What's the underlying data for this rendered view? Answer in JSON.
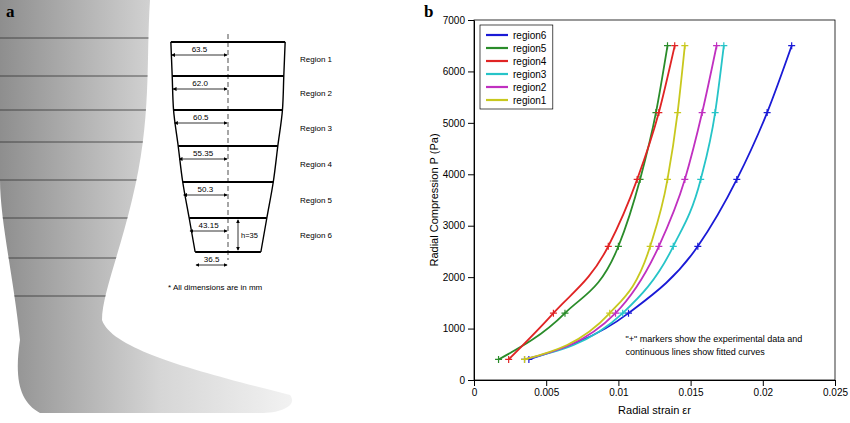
{
  "diagram": {
    "panel_label": "a",
    "widths": [
      "63.5",
      "62.0",
      "60.5",
      "55.35",
      "50.3",
      "43.15",
      "36.5"
    ],
    "regions": [
      "Region 1",
      "Region 2",
      "Region 3",
      "Region 4",
      "Region 5",
      "Region 6"
    ],
    "height_label": "h=35",
    "note": "* All dimensions are in mm"
  },
  "chart_data": {
    "panel_label": "b",
    "type": "line",
    "x_label": "Radial strain εr",
    "y_label": "Radial Compression P (Pa)",
    "xlim": [
      0,
      0.025
    ],
    "xticks": [
      0,
      0.005,
      0.01,
      0.015,
      0.02,
      0.025
    ],
    "ylim": [
      0,
      7000
    ],
    "yticks": [
      0,
      1000,
      2000,
      3000,
      4000,
      5000,
      6000,
      7000
    ],
    "legend": "upper-left",
    "marker": "+",
    "annotation": [
      "\"+\" markers show the experimental data and",
      "continuous lines show fitted curves"
    ],
    "series": [
      {
        "name": "region6",
        "color": "#1a1ad6",
        "x": [
          0.0038,
          0.0107,
          0.0155,
          0.0182,
          0.0203,
          0.022
        ],
        "values": [
          400,
          1300,
          2600,
          3900,
          5200,
          6500
        ]
      },
      {
        "name": "region5",
        "color": "#2a8c2a",
        "x": [
          0.0017,
          0.0063,
          0.01,
          0.0115,
          0.0126,
          0.0134
        ],
        "values": [
          400,
          1300,
          2600,
          3900,
          5200,
          6500
        ]
      },
      {
        "name": "region4",
        "color": "#e02424",
        "x": [
          0.0024,
          0.0055,
          0.0093,
          0.0113,
          0.0128,
          0.0139
        ],
        "values": [
          400,
          1300,
          2600,
          3900,
          5200,
          6500
        ]
      },
      {
        "name": "region3",
        "color": "#26c4c8",
        "x": [
          0.0035,
          0.0103,
          0.0138,
          0.0157,
          0.0167,
          0.0173
        ],
        "values": [
          400,
          1300,
          2600,
          3900,
          5200,
          6500
        ]
      },
      {
        "name": "region2",
        "color": "#c030c0",
        "x": [
          0.0035,
          0.0098,
          0.0128,
          0.0146,
          0.0158,
          0.0168
        ],
        "values": [
          400,
          1300,
          2600,
          3900,
          5200,
          6500
        ]
      },
      {
        "name": "region1",
        "color": "#c8c81e",
        "x": [
          0.0035,
          0.0094,
          0.0122,
          0.0134,
          0.0141,
          0.0146
        ],
        "values": [
          400,
          1300,
          2600,
          3900,
          5200,
          6500
        ]
      }
    ]
  }
}
